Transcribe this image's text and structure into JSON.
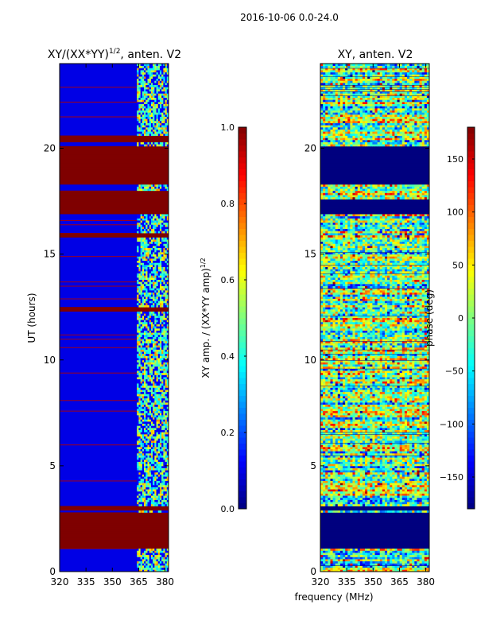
{
  "figure": {
    "suptitle": "2016-10-06 0.0-24.0",
    "xlabel": "frequency (MHz)"
  },
  "colors": {
    "stops": [
      "#00007f",
      "#0000ff",
      "#007fff",
      "#00ffff",
      "#7fff7f",
      "#ffff00",
      "#ff7f00",
      "#ff0000",
      "#7f0000"
    ]
  },
  "chart_data": [
    {
      "type": "heatmap",
      "title": "XY/(XX*YY)^{1/2}, anten. V2",
      "title_main": "XY/(XX*YY)",
      "title_sup": "1/2",
      "title_rest": ", anten. V2",
      "xlabel": "",
      "ylabel": "UT (hours)",
      "xlim": [
        320,
        382
      ],
      "ylim": [
        0,
        24
      ],
      "xticks": [
        320,
        335,
        350,
        365,
        380
      ],
      "yticks": [
        0,
        5,
        10,
        15,
        20
      ],
      "colorbar": {
        "label": "XY amp. / (XX*YY amp)^{1/2}",
        "label_main": "XY amp. / (XX*YY amp)",
        "label_sup": "1/2",
        "range": [
          0.0,
          1.0
        ],
        "ticks": [
          "0.0",
          "0.2",
          "0.4",
          "0.6",
          "0.8",
          "1.0"
        ],
        "tick_values": [
          0.0,
          0.2,
          0.4,
          0.6,
          0.8,
          1.0
        ]
      },
      "bad_time_bands": [
        [
          1.1,
          2.75
        ],
        [
          2.95,
          3.15
        ],
        [
          16.9,
          18.0
        ],
        [
          18.35,
          20.05
        ],
        [
          20.35,
          20.55
        ],
        [
          15.85,
          15.95
        ],
        [
          12.35,
          12.5
        ]
      ],
      "active_freq_range": [
        364,
        382
      ],
      "background_value": 0.1
    },
    {
      "type": "heatmap",
      "title": "XY, anten. V2",
      "xlabel": "",
      "ylabel": "",
      "xlim": [
        320,
        382
      ],
      "ylim": [
        0,
        24
      ],
      "xticks": [
        320,
        335,
        350,
        365,
        380
      ],
      "yticks": [
        0,
        5,
        10,
        15,
        20
      ],
      "colorbar": {
        "label": "phase (deg)",
        "range": [
          -180,
          180
        ],
        "ticks": [
          "150",
          "100",
          "50",
          "0",
          "−50",
          "−100",
          "−150"
        ],
        "tick_values": [
          150,
          100,
          50,
          0,
          -50,
          -100,
          -150
        ]
      },
      "blank_time_bands": [
        [
          1.1,
          2.75
        ],
        [
          2.95,
          3.15
        ],
        [
          18.35,
          20.05
        ],
        [
          16.9,
          17.6
        ]
      ]
    }
  ]
}
